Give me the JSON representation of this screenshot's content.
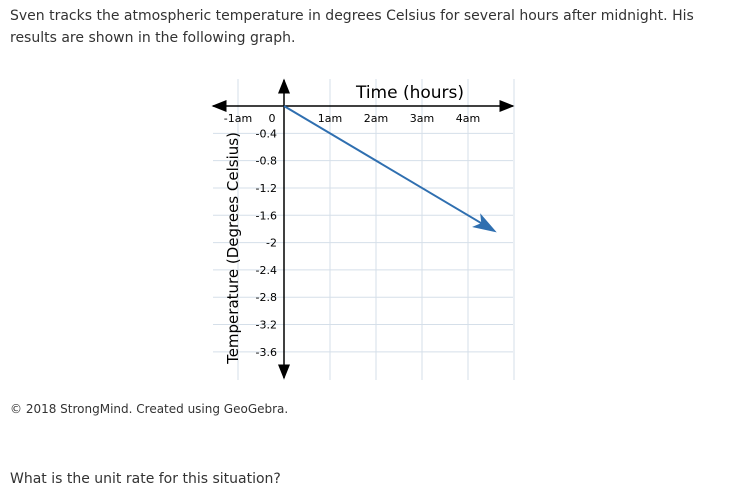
{
  "problem": {
    "intro": "Sven tracks the atmospheric temperature in degrees Celsius for several hours after midnight. His results are shown in the following graph.",
    "credit": "© 2018 StrongMind. Created using GeoGebra.",
    "question": "What is the unit rate for this situation?"
  },
  "chart_data": {
    "type": "line",
    "xlabel": "Time (hours)",
    "ylabel": "Temperature (Degrees Celsius)",
    "xlim": [
      -1.5,
      5
    ],
    "ylim": [
      -4,
      0.4
    ],
    "grid": true,
    "x_ticks": [
      {
        "v": -1,
        "label": "-1am"
      },
      {
        "v": 0,
        "label": "0"
      },
      {
        "v": 1,
        "label": "1am"
      },
      {
        "v": 2,
        "label": "2am"
      },
      {
        "v": 3,
        "label": "3am"
      },
      {
        "v": 4,
        "label": "4am"
      }
    ],
    "y_ticks": [
      {
        "v": -0.4,
        "label": "-0.4"
      },
      {
        "v": -0.8,
        "label": "-0.8"
      },
      {
        "v": -1.2,
        "label": "-1.2"
      },
      {
        "v": -1.6,
        "label": "-1.6"
      },
      {
        "v": -2,
        "label": "-2"
      },
      {
        "v": -2.4,
        "label": "-2.4"
      },
      {
        "v": -2.8,
        "label": "-2.8"
      },
      {
        "v": -3.2,
        "label": "-3.2"
      },
      {
        "v": -3.6,
        "label": "-3.6"
      }
    ],
    "series": [
      {
        "points": [
          [
            0,
            0
          ],
          [
            4.55,
            -1.82
          ]
        ],
        "color": "#2f6fb0",
        "arrow_end": true
      }
    ]
  }
}
